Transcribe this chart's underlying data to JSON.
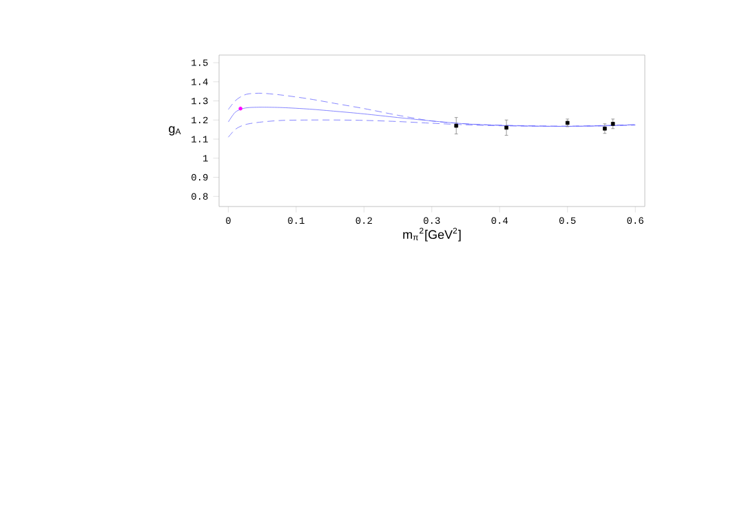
{
  "chart_data": {
    "type": "line",
    "xlabel": "m$_{π}$$^{2}$[GeV$^{2}$]",
    "ylabel": "g$_{A}$",
    "xlim": [
      -0.0136,
      0.614
    ],
    "ylim": [
      0.747,
      1.54
    ],
    "xticks": [
      0,
      0.1,
      0.2,
      0.3,
      0.4,
      0.5,
      0.6
    ],
    "yticks": [
      0.8,
      0.9,
      1,
      1.1,
      1.2,
      1.3,
      1.4,
      1.5
    ],
    "grid": false,
    "series": [
      {
        "color": "#6666ff",
        "line_style": "solid",
        "x": [
          0,
          0.01,
          0.02,
          0.03,
          0.05,
          0.08,
          0.12,
          0.16,
          0.2,
          0.25,
          0.3,
          0.35,
          0.4,
          0.45,
          0.5,
          0.55,
          0.6
        ],
        "values": [
          1.19,
          1.24,
          1.258,
          1.265,
          1.267,
          1.265,
          1.257,
          1.245,
          1.232,
          1.213,
          1.195,
          1.18,
          1.172,
          1.168,
          1.167,
          1.169,
          1.175
        ]
      },
      {
        "color": "#6666ff",
        "line_style": "dashed",
        "x": [
          0,
          0.01,
          0.02,
          0.03,
          0.05,
          0.08,
          0.12,
          0.16,
          0.2,
          0.25,
          0.3,
          0.35,
          0.4,
          0.5,
          0.6
        ],
        "values": [
          1.255,
          1.3,
          1.325,
          1.337,
          1.34,
          1.33,
          1.31,
          1.285,
          1.26,
          1.225,
          1.195,
          1.18,
          1.173,
          1.168,
          1.176
        ]
      },
      {
        "color": "#6666ff",
        "line_style": "dashed",
        "x": [
          0,
          0.01,
          0.02,
          0.03,
          0.05,
          0.08,
          0.12,
          0.16,
          0.2,
          0.25,
          0.3,
          0.35,
          0.4,
          0.5,
          0.6
        ],
        "values": [
          1.11,
          1.15,
          1.17,
          1.18,
          1.19,
          1.198,
          1.2,
          1.2,
          1.198,
          1.192,
          1.183,
          1.175,
          1.17,
          1.167,
          1.173
        ]
      },
      {
        "type": "scatter",
        "color": "#000000",
        "marker": "square",
        "x": [
          0.336,
          0.41,
          0.5,
          0.555,
          0.567
        ],
        "values": [
          1.17,
          1.16,
          1.185,
          1.155,
          1.18
        ],
        "errors": [
          0.043,
          0.04,
          0.02,
          0.025,
          0.025
        ]
      },
      {
        "type": "scatter",
        "color": "#ff00ff",
        "marker": "circle",
        "x": [
          0.018
        ],
        "values": [
          1.26
        ]
      }
    ]
  }
}
